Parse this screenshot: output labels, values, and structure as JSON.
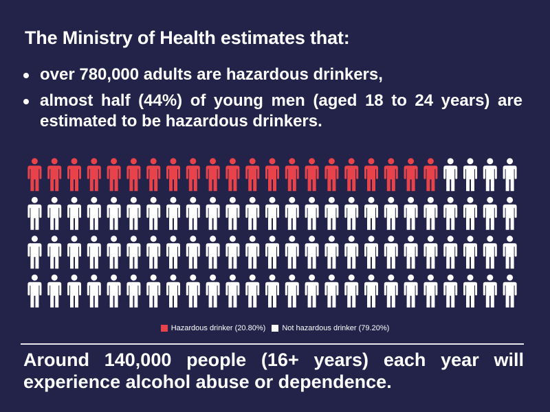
{
  "title": "The Ministry of Health estimates that:",
  "bullets": [
    "over 780,000 adults are hazardous drinkers,",
    "almost half (44%) of young men (aged 18 to 24 years) are estimated to be hazardous drinkers."
  ],
  "footer": "Around 140,000 people (16+ years) each year will experience alcohol abuse or dependence.",
  "colors": {
    "background": "#232349",
    "hazardous": "#e8434a",
    "not_hazardous": "#ffffff"
  },
  "chart_data": {
    "type": "pictogram",
    "icon": "person-icon",
    "rows": 4,
    "columns": 25,
    "total_icons": 100,
    "series": [
      {
        "name": "Hazardous drinker (20.80%)",
        "percent": 20.8,
        "icons": 21,
        "color": "#e8434a"
      },
      {
        "name": "Not hazardous drinker (79.20%)",
        "percent": 79.2,
        "icons": 79,
        "color": "#ffffff"
      }
    ],
    "legend_position": "bottom-center"
  }
}
